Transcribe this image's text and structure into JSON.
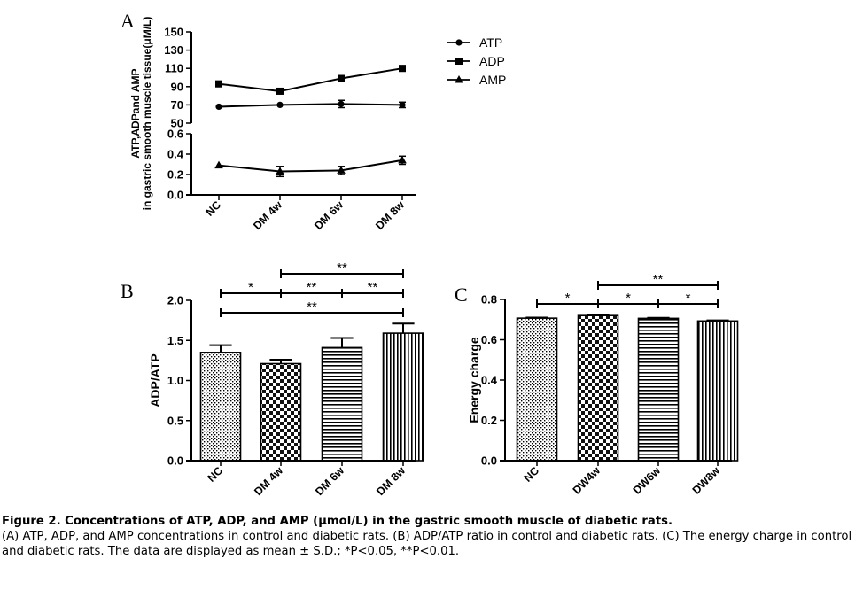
{
  "figure": {
    "caption_title": "Figure 2. Concentrations of ATP, ADP, and AMP (μmol/L) in the gastric smooth muscle of diabetic rats.",
    "caption_body": "(A) ATP, ADP, and AMP concentrations in control and diabetic rats. (B) ADP/ATP ratio in control and diabetic rats. (C) The energy charge in control and diabetic rats. The data are displayed as mean ± S.D.; *P<0.05, **P<0.01."
  },
  "chart_data": [
    {
      "panel": "A",
      "type": "line",
      "ylabel": "ATP,ADPand AMP in gastric smooth muscle tissue(μM/L)",
      "categories": [
        "NC",
        "DM 4w",
        "DM 6w",
        "DM 8w"
      ],
      "axis_break": true,
      "upper_ylim": [
        50,
        150
      ],
      "upper_ticks": [
        "50",
        "70",
        "90",
        "110",
        "130",
        "150"
      ],
      "lower_ylim": [
        0,
        0.6
      ],
      "lower_ticks": [
        "0.0",
        "0.2",
        "0.4",
        "0.6"
      ],
      "legend_position": "top-right",
      "series": [
        {
          "name": "ATP",
          "marker": "circle",
          "values": [
            68,
            70,
            71,
            70
          ],
          "errors": [
            0,
            0,
            4,
            3
          ]
        },
        {
          "name": "ADP",
          "marker": "square",
          "values": [
            93,
            85,
            99,
            110
          ],
          "errors": [
            3,
            2,
            3,
            3
          ]
        },
        {
          "name": "AMP",
          "marker": "triangle",
          "values": [
            0.29,
            0.23,
            0.24,
            0.34
          ],
          "errors": [
            0,
            0.05,
            0.04,
            0.04
          ]
        }
      ]
    },
    {
      "panel": "B",
      "type": "bar",
      "ylabel": "ADP/ATP",
      "categories": [
        "NC",
        "DM 4w",
        "DM 6w",
        "DM 8w"
      ],
      "values": [
        1.35,
        1.21,
        1.41,
        1.59
      ],
      "errors": [
        0.09,
        0.05,
        0.12,
        0.12
      ],
      "ylim": [
        0,
        2.0
      ],
      "yticks": [
        "0.0",
        "0.5",
        "1.0",
        "1.5",
        "2.0"
      ],
      "significance": [
        {
          "from": 0,
          "to": 1,
          "label": "*"
        },
        {
          "from": 1,
          "to": 2,
          "label": "**"
        },
        {
          "from": 2,
          "to": 3,
          "label": "**"
        },
        {
          "from": 1,
          "to": 3,
          "label": "**"
        },
        {
          "from": 0,
          "to": 3,
          "label": "**"
        }
      ]
    },
    {
      "panel": "C",
      "type": "bar",
      "ylabel": "Energy charge",
      "categories": [
        "NC",
        "DW4w",
        "DW6w",
        "DW8w"
      ],
      "values": [
        0.707,
        0.72,
        0.706,
        0.693
      ],
      "errors": [
        0.003,
        0.004,
        0.003,
        0.003
      ],
      "ylim": [
        0,
        0.8
      ],
      "yticks": [
        "0.0",
        "0.2",
        "0.4",
        "0.6",
        "0.8"
      ],
      "significance": [
        {
          "from": 0,
          "to": 1,
          "label": "*"
        },
        {
          "from": 1,
          "to": 2,
          "label": "*"
        },
        {
          "from": 2,
          "to": 3,
          "label": "*"
        },
        {
          "from": 1,
          "to": 3,
          "label": "**"
        }
      ]
    }
  ]
}
